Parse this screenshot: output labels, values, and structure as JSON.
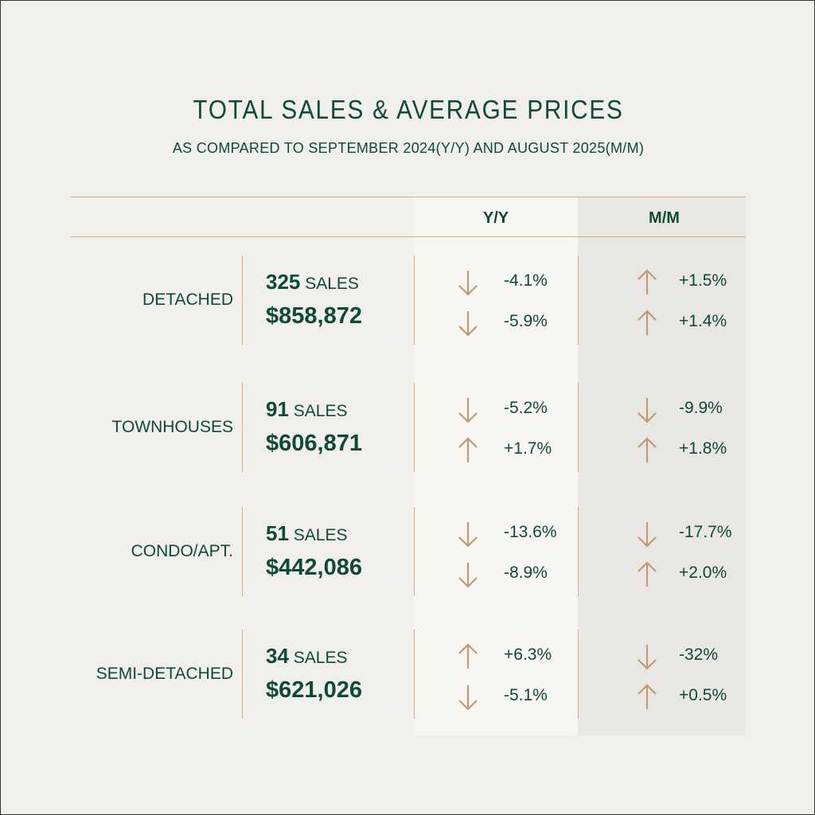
{
  "title": "TOTAL SALES & AVERAGE PRICES",
  "subtitle": "AS COMPARED TO SEPTEMBER 2024(Y/Y) AND AUGUST 2025(M/M)",
  "headers": {
    "yy": "Y/Y",
    "mm": "M/M"
  },
  "colors": {
    "green": "#0f4a33",
    "arrow": "#c09a74"
  },
  "rows": [
    {
      "label": "DETACHED",
      "sales_count": "325",
      "sales_unit": "SALES",
      "price": "$858,872",
      "yy_sales": {
        "dir": "down",
        "value": "-4.1%"
      },
      "yy_price": {
        "dir": "down",
        "value": "-5.9%"
      },
      "mm_sales": {
        "dir": "up",
        "value": "+1.5%"
      },
      "mm_price": {
        "dir": "up",
        "value": "+1.4%"
      }
    },
    {
      "label": "TOWNHOUSES",
      "sales_count": "91",
      "sales_unit": "SALES",
      "price": "$606,871",
      "yy_sales": {
        "dir": "down",
        "value": "-5.2%"
      },
      "yy_price": {
        "dir": "up",
        "value": "+1.7%"
      },
      "mm_sales": {
        "dir": "down",
        "value": "-9.9%"
      },
      "mm_price": {
        "dir": "up",
        "value": "+1.8%"
      }
    },
    {
      "label": "CONDO/APT.",
      "sales_count": "51",
      "sales_unit": "SALES",
      "price": "$442,086",
      "yy_sales": {
        "dir": "down",
        "value": "-13.6%"
      },
      "yy_price": {
        "dir": "down",
        "value": "-8.9%"
      },
      "mm_sales": {
        "dir": "down",
        "value": "-17.7%"
      },
      "mm_price": {
        "dir": "up",
        "value": "+2.0%"
      }
    },
    {
      "label": "SEMI-DETACHED",
      "sales_count": "34",
      "sales_unit": "SALES",
      "price": "$621,026",
      "yy_sales": {
        "dir": "up",
        "value": "+6.3%"
      },
      "yy_price": {
        "dir": "down",
        "value": "-5.1%"
      },
      "mm_sales": {
        "dir": "down",
        "value": "-32%"
      },
      "mm_price": {
        "dir": "up",
        "value": "+0.5%"
      }
    }
  ]
}
